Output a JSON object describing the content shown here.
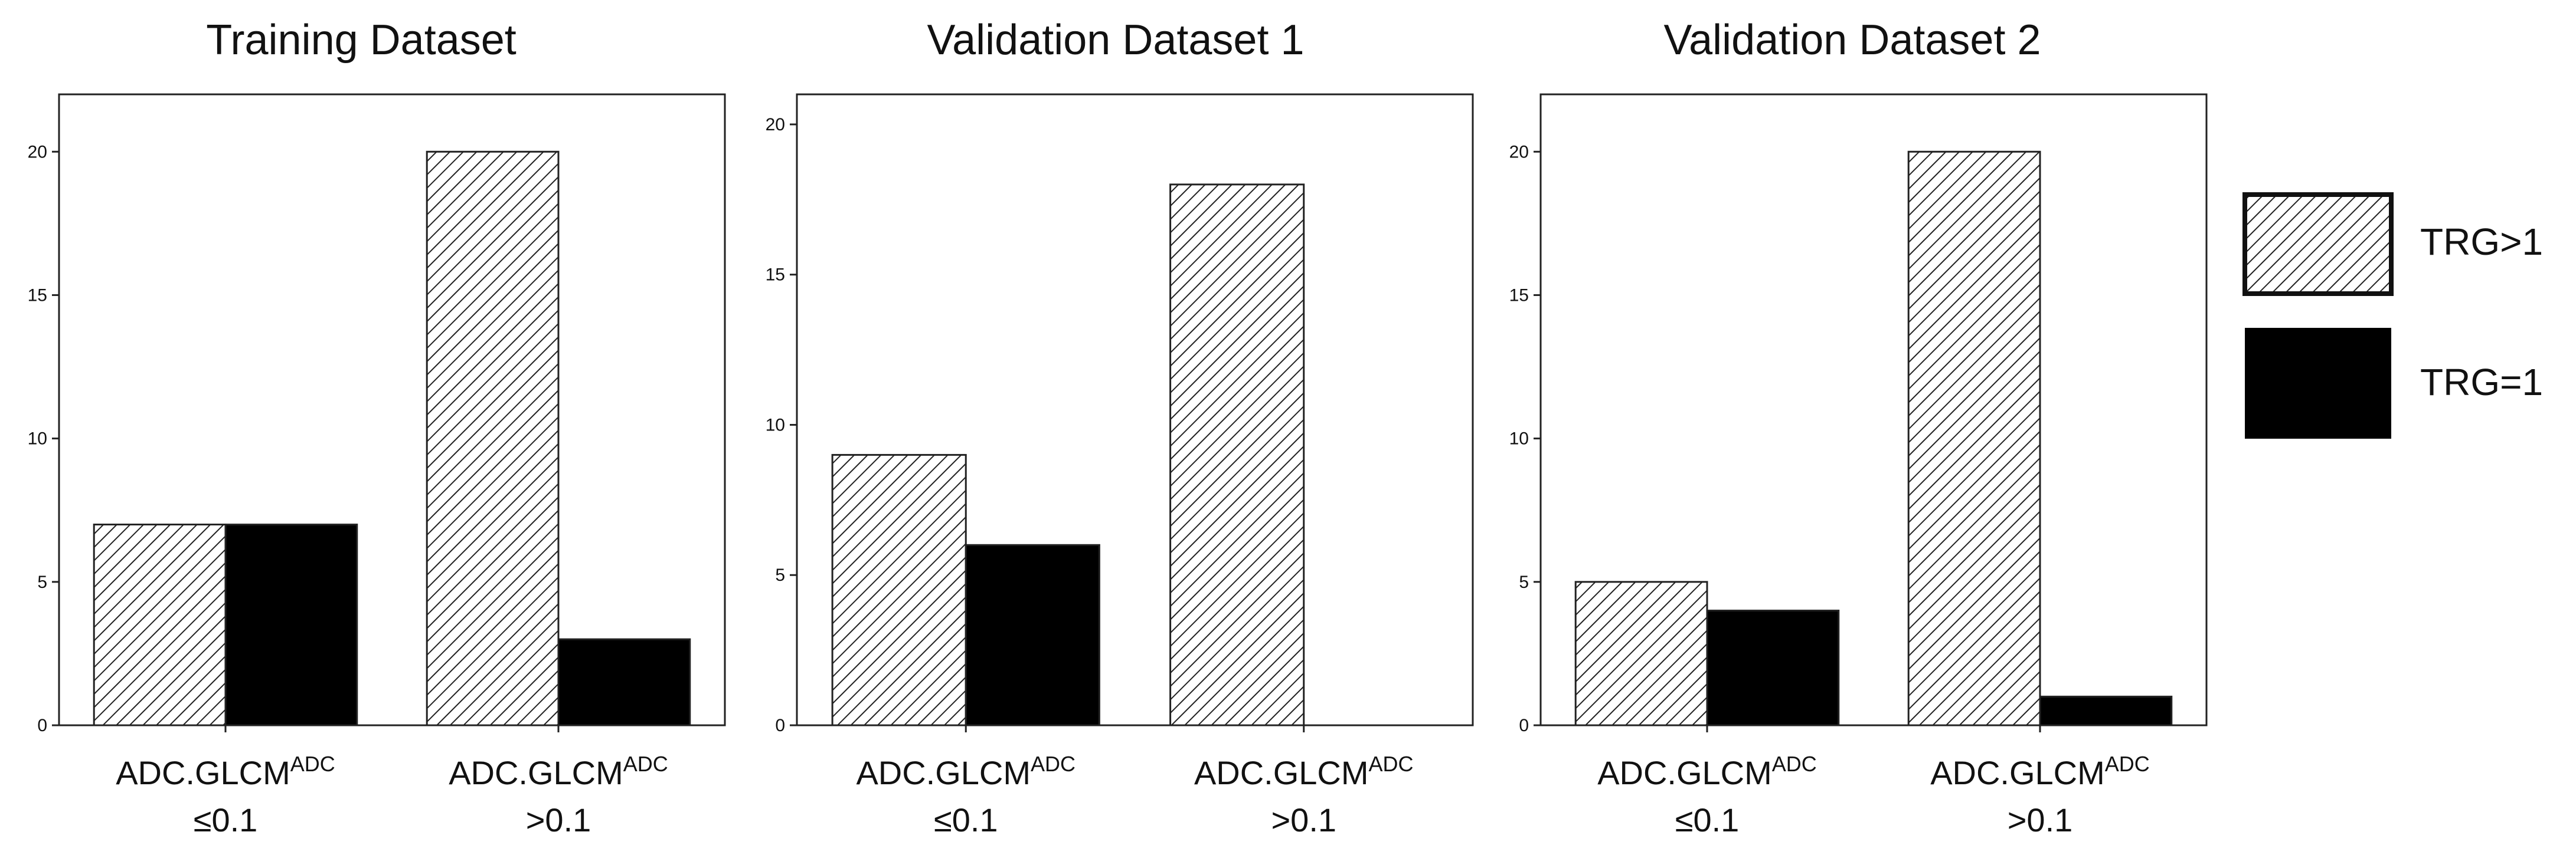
{
  "colors": {
    "hatch_fill": "#ffffff",
    "hatch_line": "#222222",
    "solid_fill": "#000000",
    "frame": "#222222",
    "text": "#111111"
  },
  "legend": {
    "items": [
      {
        "label": "TRG>1",
        "pattern": "hatched"
      },
      {
        "label": "TRG=1",
        "pattern": "solid"
      }
    ]
  },
  "chart_data": [
    {
      "type": "bar",
      "title": "Training Dataset",
      "categories": [
        {
          "name": "ADC.GLCM",
          "sup": "ADC",
          "cond": "≤0.1"
        },
        {
          "name": "ADC.GLCM",
          "sup": "ADC",
          "cond": ">0.1"
        }
      ],
      "series": [
        {
          "name": "TRG>1",
          "values": [
            7,
            20
          ]
        },
        {
          "name": "TRG=1",
          "values": [
            7,
            3
          ]
        }
      ],
      "ylim": [
        0,
        22
      ],
      "yticks": [
        "0",
        "5",
        "10",
        "15",
        "20"
      ],
      "xlabel": "",
      "ylabel": ""
    },
    {
      "type": "bar",
      "title": "Validation Dataset 1",
      "categories": [
        {
          "name": "ADC.GLCM",
          "sup": "ADC",
          "cond": "≤0.1"
        },
        {
          "name": "ADC.GLCM",
          "sup": "ADC",
          "cond": ">0.1"
        }
      ],
      "series": [
        {
          "name": "TRG>1",
          "values": [
            9,
            18
          ]
        },
        {
          "name": "TRG=1",
          "values": [
            6,
            0
          ]
        }
      ],
      "ylim": [
        0,
        21
      ],
      "yticks": [
        "0",
        "5",
        "10",
        "15",
        "20"
      ],
      "xlabel": "",
      "ylabel": ""
    },
    {
      "type": "bar",
      "title": "Validation Dataset 2",
      "categories": [
        {
          "name": "ADC.GLCM",
          "sup": "ADC",
          "cond": "≤0.1"
        },
        {
          "name": "ADC.GLCM",
          "sup": "ADC",
          "cond": ">0.1"
        }
      ],
      "series": [
        {
          "name": "TRG>1",
          "values": [
            5,
            20
          ]
        },
        {
          "name": "TRG=1",
          "values": [
            4,
            1
          ]
        }
      ],
      "ylim": [
        0,
        22
      ],
      "yticks": [
        "0",
        "5",
        "10",
        "15",
        "20"
      ],
      "xlabel": "",
      "ylabel": ""
    }
  ]
}
